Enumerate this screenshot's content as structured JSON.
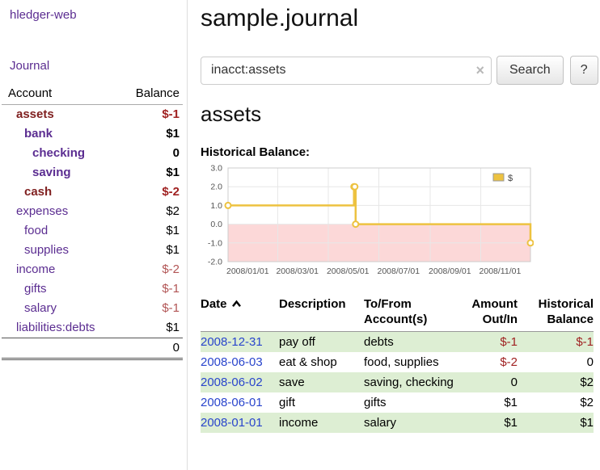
{
  "app": {
    "title": "hledger-web"
  },
  "colors": {
    "accent_purple": "#5b2d91",
    "negative_dark_red": "#7f1f1f",
    "negative_red": "#a02222",
    "negative_light_red": "#b25555",
    "link_blue": "#2945cc",
    "row_shade_green": "#ddeed3",
    "chart_gold": "#EDC240",
    "chart_negative_region": "#fcd8d8"
  },
  "sidebar": {
    "nav_journal": "Journal",
    "accounts": {
      "header_account": "Account",
      "header_balance": "Balance",
      "rows": [
        {
          "name": "assets",
          "balance": "$-1",
          "indent": 0,
          "bold": true,
          "name_color": "#7f1f1f",
          "balance_color": "#a02222"
        },
        {
          "name": "bank",
          "balance": "$1",
          "indent": 1,
          "bold": true,
          "name_color": "#5b2d91",
          "balance_color": "#000000"
        },
        {
          "name": "checking",
          "balance": "0",
          "indent": 2,
          "bold": true,
          "name_color": "#5b2d91",
          "balance_color": "#000000"
        },
        {
          "name": "saving",
          "balance": "$1",
          "indent": 2,
          "bold": true,
          "name_color": "#5b2d91",
          "balance_color": "#000000"
        },
        {
          "name": "cash",
          "balance": "$-2",
          "indent": 1,
          "bold": true,
          "name_color": "#7f1f1f",
          "balance_color": "#a02222"
        },
        {
          "name": "expenses",
          "balance": "$2",
          "indent": 0,
          "bold": false,
          "name_color": "#5b2d91",
          "balance_color": "#000000"
        },
        {
          "name": "food",
          "balance": "$1",
          "indent": 1,
          "bold": false,
          "name_color": "#5b2d91",
          "balance_color": "#000000"
        },
        {
          "name": "supplies",
          "balance": "$1",
          "indent": 1,
          "bold": false,
          "name_color": "#5b2d91",
          "balance_color": "#000000"
        },
        {
          "name": "income",
          "balance": "$-2",
          "indent": 0,
          "bold": false,
          "name_color": "#5b2d91",
          "balance_color": "#b25555"
        },
        {
          "name": "gifts",
          "balance": "$-1",
          "indent": 1,
          "bold": false,
          "name_color": "#5b2d91",
          "balance_color": "#b25555"
        },
        {
          "name": "salary",
          "balance": "$-1",
          "indent": 1,
          "bold": false,
          "name_color": "#5b2d91",
          "balance_color": "#b25555"
        },
        {
          "name": "liabilities:debts",
          "balance": "$1",
          "indent": 0,
          "bold": false,
          "name_color": "#5b2d91",
          "balance_color": "#000000"
        }
      ],
      "total": "0"
    }
  },
  "main": {
    "title": "sample.journal",
    "search": {
      "value": "inacct:assets",
      "clear_icon": "×",
      "search_button": "Search",
      "help_button": "?"
    },
    "account_heading": "assets",
    "chart_title": "Historical Balance:",
    "register": {
      "headers": {
        "date": "Date",
        "description": "Description",
        "account_line1": "To/From",
        "account_line2": "Account(s)",
        "amount_line1": "Amount",
        "amount_line2": "Out/In",
        "balance_line1": "Historical",
        "balance_line2": "Balance"
      },
      "rows": [
        {
          "date": "2008-12-31",
          "description": "pay off",
          "accounts": "debts",
          "amount": "$-1",
          "balance": "$-1",
          "amount_neg": true,
          "balance_neg": true,
          "shaded": true
        },
        {
          "date": "2008-06-03",
          "description": "eat & shop",
          "accounts": "food, supplies",
          "amount": "$-2",
          "balance": "0",
          "amount_neg": true,
          "balance_neg": false,
          "shaded": false
        },
        {
          "date": "2008-06-02",
          "description": "save",
          "accounts": "saving, checking",
          "amount": "0",
          "balance": "$2",
          "amount_neg": false,
          "balance_neg": false,
          "shaded": true
        },
        {
          "date": "2008-06-01",
          "description": "gift",
          "accounts": "gifts",
          "amount": "$1",
          "balance": "$2",
          "amount_neg": false,
          "balance_neg": false,
          "shaded": false
        },
        {
          "date": "2008-01-01",
          "description": "income",
          "accounts": "salary",
          "amount": "$1",
          "balance": "$1",
          "amount_neg": false,
          "balance_neg": false,
          "shaded": true
        }
      ]
    }
  },
  "chart_data": {
    "type": "line",
    "step": true,
    "title": "Historical Balance",
    "x_range": [
      "2008-01-01",
      "2008-12-31"
    ],
    "ylim": [
      -2,
      3
    ],
    "yticks": [
      "3.0",
      "2.0",
      "1.0",
      "0.0",
      "-1.0",
      "-2.0"
    ],
    "xticks": [
      "2008/01/01",
      "2008/03/01",
      "2008/05/01",
      "2008/07/01",
      "2008/09/01",
      "2008/11/01"
    ],
    "series": [
      {
        "name": "$",
        "color": "#EDC240",
        "points": [
          [
            "2008-01-01",
            1
          ],
          [
            "2008-06-01",
            2
          ],
          [
            "2008-06-02",
            2
          ],
          [
            "2008-06-03",
            0
          ],
          [
            "2008-12-31",
            -1
          ]
        ]
      }
    ],
    "negative_fill": "#fcd8d8",
    "grid": true,
    "legend": [
      {
        "label": "$",
        "color": "#EDC240"
      }
    ],
    "legend_position": "top-right"
  }
}
